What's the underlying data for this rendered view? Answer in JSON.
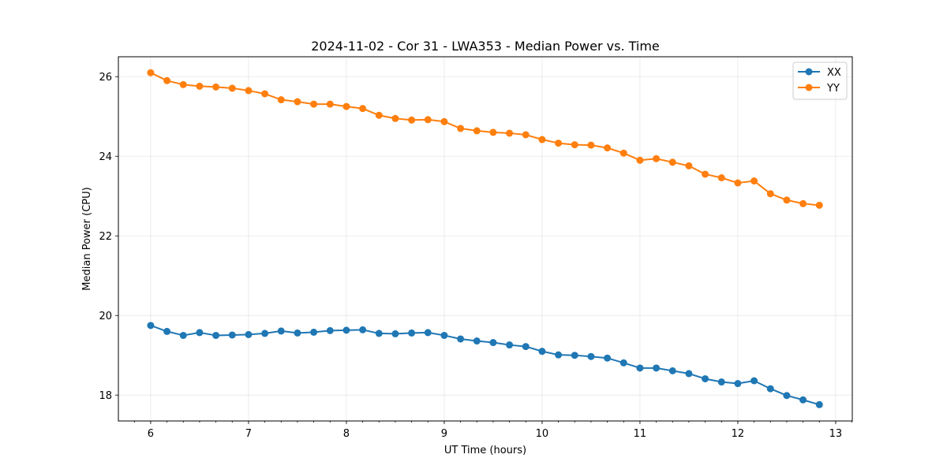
{
  "chart_data": {
    "type": "line",
    "title": "2024-11-02 - Cor 31 - LWA353 - Median Power vs. Time",
    "xlabel": "UT Time (hours)",
    "ylabel": "Median Power (CPU)",
    "xlim": [
      5.67,
      13.17
    ],
    "ylim": [
      17.35,
      26.5
    ],
    "xticks": [
      6,
      7,
      8,
      9,
      10,
      11,
      12,
      13
    ],
    "xtick_labels": [
      "6",
      "7",
      "8",
      "9",
      "10",
      "11",
      "12",
      "13"
    ],
    "yticks": [
      18,
      20,
      22,
      24,
      26
    ],
    "ytick_labels": [
      "18",
      "20",
      "22",
      "24",
      "26"
    ],
    "grid": true,
    "legend_position": "top-right",
    "x": [
      6.0,
      6.1667,
      6.3333,
      6.5,
      6.6667,
      6.8333,
      7.0,
      7.1667,
      7.3333,
      7.5,
      7.6667,
      7.8333,
      8.0,
      8.1667,
      8.3333,
      8.5,
      8.6667,
      8.8333,
      9.0,
      9.1667,
      9.3333,
      9.5,
      9.6667,
      9.8333,
      10.0,
      10.1667,
      10.3333,
      10.5,
      10.6667,
      10.8333,
      11.0,
      11.1667,
      11.3333,
      11.5,
      11.6667,
      11.8333,
      12.0,
      12.1667,
      12.3333,
      12.5,
      12.6667,
      12.8333
    ],
    "series": [
      {
        "name": "XX",
        "color": "#1f77b4",
        "values": [
          19.75,
          19.6,
          19.5,
          19.57,
          19.5,
          19.51,
          19.52,
          19.55,
          19.61,
          19.56,
          19.58,
          19.62,
          19.63,
          19.64,
          19.55,
          19.54,
          19.56,
          19.57,
          19.5,
          19.41,
          19.36,
          19.32,
          19.26,
          19.22,
          19.1,
          19.01,
          19.0,
          18.97,
          18.93,
          18.81,
          18.68,
          18.68,
          18.61,
          18.54,
          18.41,
          18.33,
          18.29,
          18.36,
          18.16,
          17.99,
          17.88,
          17.76
        ]
      },
      {
        "name": "YY",
        "color": "#ff7f0e",
        "values": [
          26.1,
          25.9,
          25.8,
          25.76,
          25.74,
          25.71,
          25.65,
          25.57,
          25.42,
          25.37,
          25.31,
          25.31,
          25.25,
          25.2,
          25.03,
          24.95,
          24.91,
          24.92,
          24.87,
          24.7,
          24.64,
          24.6,
          24.58,
          24.54,
          24.42,
          24.33,
          24.29,
          24.28,
          24.21,
          24.08,
          23.9,
          23.94,
          23.85,
          23.76,
          23.55,
          23.46,
          23.33,
          23.38,
          23.06,
          22.9,
          22.81,
          22.77
        ]
      }
    ]
  }
}
